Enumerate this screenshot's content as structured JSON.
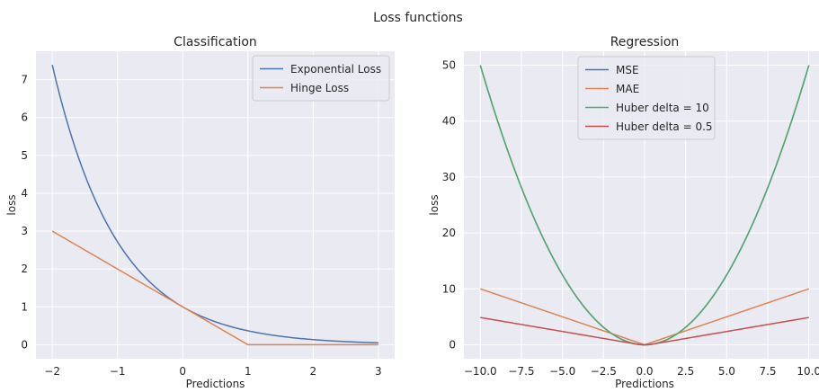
{
  "figure": {
    "title": "Loss functions"
  },
  "chart_data": [
    {
      "type": "line",
      "title": "Classification",
      "xlabel": "Predictions",
      "ylabel": "loss",
      "xlim": [
        -2.25,
        3.25
      ],
      "ylim": [
        -0.37,
        7.75
      ],
      "xticks": [
        -2,
        -1,
        0,
        1,
        2,
        3
      ],
      "xtick_labels": [
        "−2",
        "−1",
        "0",
        "1",
        "2",
        "3"
      ],
      "yticks": [
        0,
        1,
        2,
        3,
        4,
        5,
        6,
        7
      ],
      "ytick_labels": [
        "0",
        "1",
        "2",
        "3",
        "4",
        "5",
        "6",
        "7"
      ],
      "grid": true,
      "legend": "top-right",
      "series": [
        {
          "name": "Exponential Loss",
          "color": "#4c72b0",
          "formula": "exp(-x)",
          "x_range": [
            -2,
            3
          ]
        },
        {
          "name": "Hinge Loss",
          "color": "#dd8452",
          "formula": "max(0, 1 - x)",
          "x_range": [
            -2,
            3
          ]
        }
      ]
    },
    {
      "type": "line",
      "title": "Regression",
      "xlabel": "Predictions",
      "ylabel": "loss",
      "xlim": [
        -11,
        11
      ],
      "ylim": [
        -2.5,
        52.5
      ],
      "xticks": [
        -10,
        -7.5,
        -5,
        -2.5,
        0,
        2.5,
        5,
        7.5,
        10
      ],
      "xtick_labels": [
        "−10.0",
        "−7.5",
        "−5.0",
        "−2.5",
        "0.0",
        "2.5",
        "5.0",
        "7.5",
        "10.0"
      ],
      "yticks": [
        0,
        10,
        20,
        30,
        40,
        50
      ],
      "ytick_labels": [
        "0",
        "10",
        "20",
        "30",
        "40",
        "50"
      ],
      "grid": true,
      "legend": "top-center",
      "series": [
        {
          "name": "MSE",
          "color": "#4c72b0",
          "formula": "x^2 / 2",
          "x_range": [
            -10,
            10
          ]
        },
        {
          "name": "MAE",
          "color": "#dd8452",
          "formula": "|x|",
          "x_range": [
            -10,
            10
          ]
        },
        {
          "name": "Huber delta = 10",
          "color": "#55a868",
          "formula": "huber(x, 10)",
          "x_range": [
            -10,
            10
          ]
        },
        {
          "name": "Huber delta = 0.5",
          "color": "#c44e52",
          "formula": "huber(x, 0.5)",
          "x_range": [
            -10,
            10
          ]
        }
      ]
    }
  ]
}
